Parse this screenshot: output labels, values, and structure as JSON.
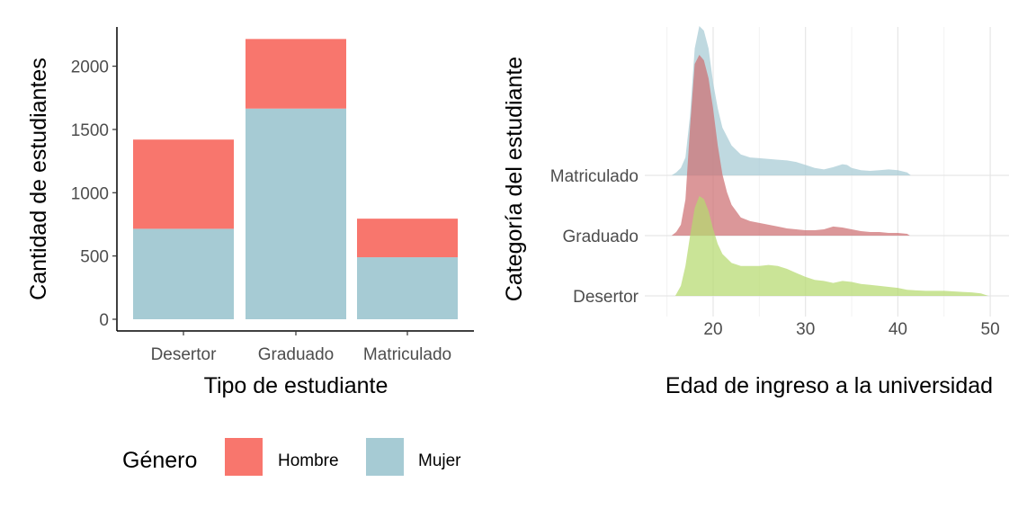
{
  "chart_data": [
    {
      "type": "bar",
      "stacked": true,
      "categories": [
        "Desertor",
        "Graduado",
        "Matriculado"
      ],
      "series": [
        {
          "name": "Hombre",
          "values": [
            705,
            550,
            305
          ],
          "color": "#F8766D"
        },
        {
          "name": "Mujer",
          "values": [
            715,
            1665,
            490
          ],
          "color": "#A6CBD4"
        }
      ],
      "xlabel": "Tipo de estudiante",
      "ylabel": "Cantidad de estudiantes",
      "ylim": [
        0,
        2300
      ],
      "yticks": [
        0,
        500,
        1000,
        1500,
        2000
      ],
      "grid": false
    },
    {
      "type": "area",
      "subtype": "ridgeline-density",
      "xlabel": "Edad de ingreso a la universidad",
      "ylabel": "Categoría del estudiante",
      "xlim": [
        13.3,
        51.8
      ],
      "xticks": [
        20,
        30,
        40,
        50
      ],
      "categories": [
        "Desertor",
        "Graduado",
        "Matriculado"
      ],
      "grid": true,
      "series": [
        {
          "category": "Matriculado",
          "color": "#A6CBD4",
          "x": [
            15.5,
            16.0,
            16.5,
            17.0,
            17.5,
            18.0,
            18.5,
            19.0,
            19.5,
            20.0,
            20.5,
            21.0,
            22.0,
            23.0,
            24.0,
            25.0,
            26.0,
            27.0,
            28.0,
            29.0,
            30.0,
            31.0,
            32.0,
            33.0,
            34.0,
            34.5,
            35.0,
            36.0,
            37.0,
            38.0,
            39.0,
            40.0,
            41.0,
            41.4
          ],
          "density": [
            0.0,
            0.02,
            0.05,
            0.12,
            0.4,
            0.85,
            1.0,
            0.97,
            0.85,
            0.62,
            0.45,
            0.32,
            0.2,
            0.14,
            0.12,
            0.115,
            0.11,
            0.105,
            0.1,
            0.09,
            0.07,
            0.05,
            0.04,
            0.055,
            0.075,
            0.07,
            0.05,
            0.035,
            0.03,
            0.035,
            0.04,
            0.035,
            0.02,
            0.0
          ]
        },
        {
          "category": "Graduado",
          "color": "#CD6F72",
          "x": [
            15.5,
            16.0,
            16.5,
            17.0,
            17.5,
            18.0,
            18.5,
            19.0,
            19.5,
            20.0,
            20.5,
            21.0,
            21.5,
            22.0,
            23.0,
            24.0,
            25.0,
            26.0,
            27.0,
            28.0,
            29.0,
            30.0,
            31.0,
            32.0,
            33.0,
            34.0,
            35.0,
            36.0,
            37.0,
            38.0,
            39.0,
            40.0,
            41.0,
            41.3
          ],
          "density": [
            0.0,
            0.02,
            0.06,
            0.2,
            0.6,
            0.95,
            1.0,
            0.97,
            0.87,
            0.7,
            0.5,
            0.34,
            0.24,
            0.17,
            0.1,
            0.08,
            0.07,
            0.06,
            0.05,
            0.04,
            0.035,
            0.03,
            0.03,
            0.035,
            0.05,
            0.045,
            0.035,
            0.025,
            0.02,
            0.02,
            0.015,
            0.015,
            0.01,
            0.0
          ]
        },
        {
          "category": "Desertor",
          "color": "#B5D96F",
          "x": [
            15.9,
            16.5,
            17.0,
            17.5,
            18.0,
            18.5,
            19.0,
            19.5,
            20.0,
            20.5,
            21.0,
            22.0,
            23.0,
            24.0,
            25.0,
            26.0,
            27.0,
            28.0,
            29.0,
            30.0,
            31.0,
            32.0,
            33.0,
            34.0,
            35.0,
            36.0,
            37.0,
            38.0,
            39.0,
            40.0,
            41.0,
            42.0,
            43.0,
            44.0,
            45.0,
            46.0,
            47.0,
            48.0,
            49.0,
            49.8
          ],
          "density": [
            0.0,
            0.1,
            0.3,
            0.6,
            0.88,
            1.0,
            0.97,
            0.85,
            0.67,
            0.52,
            0.42,
            0.33,
            0.3,
            0.3,
            0.3,
            0.31,
            0.3,
            0.27,
            0.23,
            0.19,
            0.16,
            0.15,
            0.13,
            0.15,
            0.14,
            0.12,
            0.11,
            0.1,
            0.09,
            0.08,
            0.06,
            0.055,
            0.05,
            0.05,
            0.05,
            0.045,
            0.04,
            0.035,
            0.025,
            0.0
          ]
        }
      ]
    }
  ],
  "legend": {
    "title": "Género",
    "items": [
      {
        "label": "Hombre",
        "color": "#F8766D"
      },
      {
        "label": "Mujer",
        "color": "#A6CBD4"
      }
    ]
  }
}
